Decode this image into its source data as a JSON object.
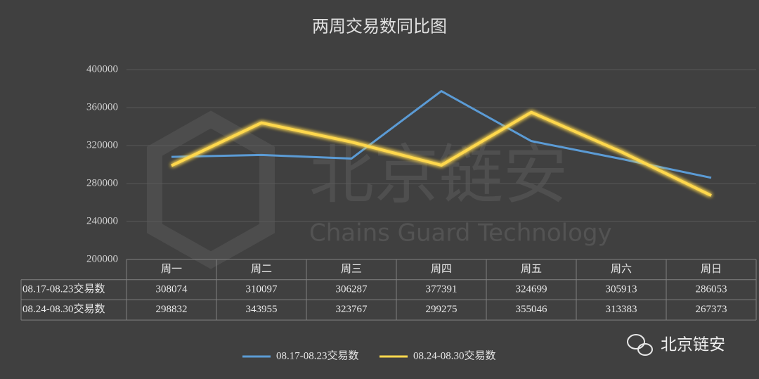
{
  "chart_data": {
    "type": "line",
    "title": "两周交易数同比图",
    "categories": [
      "周一",
      "周二",
      "周三",
      "周四",
      "周五",
      "周六",
      "周日"
    ],
    "series": [
      {
        "name": "08.17-08.23交易数",
        "color": "#5b9bd5",
        "values": [
          308074,
          310097,
          306287,
          377391,
          324699,
          305913,
          286053
        ]
      },
      {
        "name": "08.24-08.30交易数",
        "color": "#ffd84d",
        "values": [
          298832,
          343955,
          323767,
          299275,
          355046,
          313383,
          267373
        ]
      }
    ],
    "ylim": [
      200000,
      400000
    ],
    "yticks": [
      200000,
      240000,
      280000,
      320000,
      360000,
      400000
    ],
    "grid": true,
    "legend": "bottom"
  },
  "watermark": {
    "title": "北京链安",
    "subtitle": "Chains Guard Technology"
  },
  "brand": "北京链安"
}
